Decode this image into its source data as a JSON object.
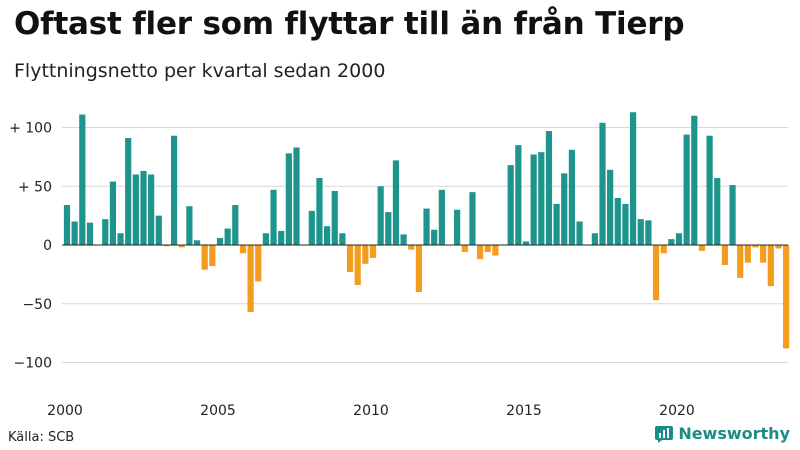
{
  "title": "Oftast fler som flyttar till än från Tierp",
  "subtitle": "Flyttningsnetto per kvartal sedan 2000",
  "source": "Källa: SCB",
  "brand": {
    "name": "Newsworthy",
    "icon": "newsworthy-logo-icon"
  },
  "colors": {
    "positive": "#1e958c",
    "negative": "#f39c1e",
    "grid": "#d8d8d8",
    "baseline": "#222222"
  },
  "chart_data": {
    "type": "bar",
    "x_unit": "quarter",
    "first_quarter": "2000 Q1",
    "values": [
      34,
      20,
      111,
      19,
      0,
      22,
      54,
      10,
      91,
      60,
      63,
      60,
      25,
      -1,
      93,
      -2,
      33,
      4,
      -21,
      -18,
      6,
      14,
      34,
      -7,
      -57,
      -31,
      10,
      47,
      12,
      78,
      83,
      0,
      29,
      57,
      16,
      46,
      10,
      -23,
      -34,
      -16,
      -11,
      50,
      28,
      72,
      9,
      -4,
      -40,
      31,
      13,
      47,
      0,
      30,
      -6,
      45,
      -12,
      -6,
      -9,
      0,
      68,
      85,
      3,
      77,
      79,
      97,
      35,
      61,
      81,
      20,
      0,
      10,
      104,
      64,
      40,
      35,
      113,
      22,
      21,
      -47,
      -7,
      5,
      10,
      94,
      110,
      -5,
      93,
      57,
      -17,
      51,
      -28,
      -15,
      -2,
      -15,
      -35,
      -3,
      -88
    ],
    "xticks": [
      "2000",
      "2005",
      "2010",
      "2015",
      "2020"
    ],
    "yticks": [
      {
        "value": 100,
        "label": "+ 100"
      },
      {
        "value": 50,
        "label": "+  50"
      },
      {
        "value": 0,
        "label": "0"
      },
      {
        "value": -50,
        "label": "−50"
      },
      {
        "value": -100,
        "label": "−100"
      }
    ],
    "ylim": [
      -105,
      120
    ],
    "grid": true
  }
}
